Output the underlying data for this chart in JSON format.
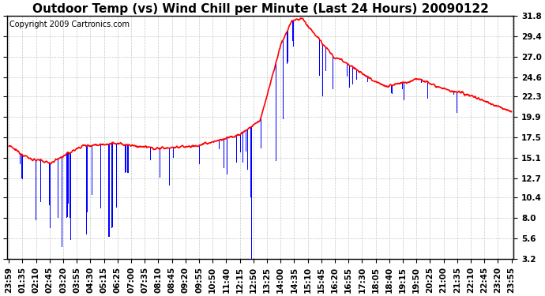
{
  "title": "Outdoor Temp (vs) Wind Chill per Minute (Last 24 Hours) 20090122",
  "copyright": "Copyright 2009 Cartronics.com",
  "yticks": [
    3.2,
    5.6,
    8.0,
    10.4,
    12.7,
    15.1,
    17.5,
    19.9,
    22.3,
    24.6,
    27.0,
    29.4,
    31.8
  ],
  "ylim": [
    3.2,
    31.8
  ],
  "xtick_labels": [
    "23:59",
    "01:35",
    "02:10",
    "02:45",
    "03:20",
    "03:55",
    "04:30",
    "05:15",
    "06:25",
    "07:00",
    "07:35",
    "08:10",
    "08:45",
    "09:20",
    "09:55",
    "10:50",
    "11:40",
    "12:15",
    "12:50",
    "13:25",
    "14:00",
    "14:35",
    "15:10",
    "15:45",
    "16:20",
    "16:55",
    "17:30",
    "18:05",
    "18:40",
    "19:15",
    "19:50",
    "20:25",
    "21:00",
    "21:35",
    "22:10",
    "22:45",
    "23:20",
    "23:55"
  ],
  "bar_color": "#0000ff",
  "line_color": "#ff0000",
  "background_color": "#ffffff",
  "grid_color": "#bbbbbb",
  "title_fontsize": 11,
  "copyright_fontsize": 7,
  "tick_fontsize": 7.5
}
